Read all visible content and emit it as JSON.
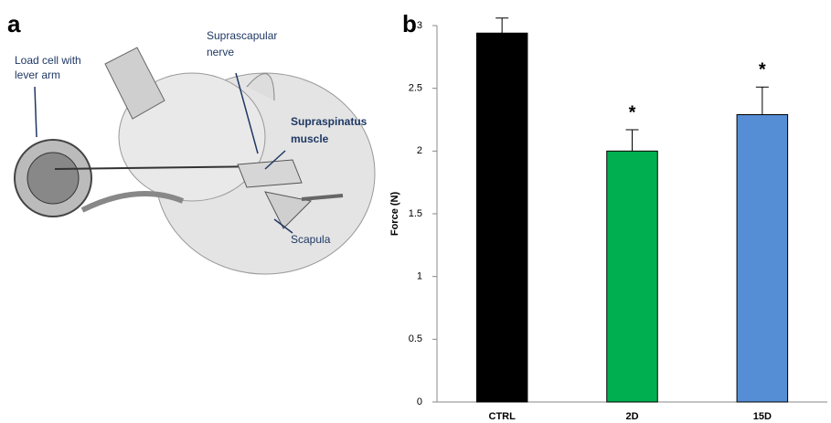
{
  "panel_a": {
    "label": "a",
    "annotations": {
      "load_cell": [
        "Load cell with",
        "lever arm"
      ],
      "nerve": [
        "Suprascapular",
        "nerve"
      ],
      "muscle": [
        "Supraspinatus",
        "muscle"
      ],
      "scapula": [
        "Scapula"
      ]
    }
  },
  "chart_data": {
    "type": "bar",
    "panel_label": "b",
    "ylabel": "Force (N)",
    "categories": [
      "CTRL",
      "2D",
      "15D"
    ],
    "values": [
      2.94,
      2.0,
      2.29
    ],
    "errors": [
      0.12,
      0.17,
      0.22
    ],
    "colors": [
      "#000000",
      "#00b050",
      "#558ed5"
    ],
    "significance": [
      null,
      "*",
      "*"
    ],
    "ylim": [
      0,
      3
    ],
    "yticks": [
      0,
      0.5,
      1,
      1.5,
      2,
      2.5,
      3
    ]
  }
}
